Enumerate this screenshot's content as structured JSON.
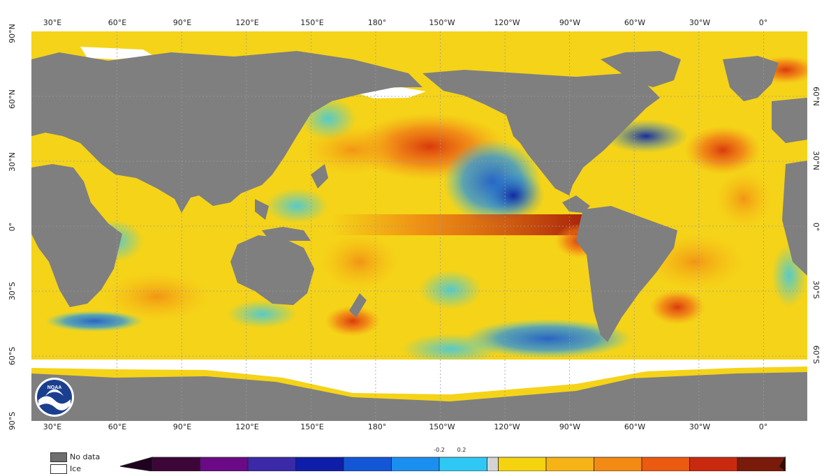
{
  "map": {
    "top_lon_labels": [
      "30°E",
      "60°E",
      "90°E",
      "120°E",
      "150°E",
      "180°",
      "150°W",
      "120°W",
      "90°W",
      "60°W",
      "30°W",
      "0°"
    ],
    "bottom_lon_labels": [
      "30°E",
      "60°E",
      "90°E",
      "120°E",
      "150°E",
      "180°",
      "150°W",
      "120°W",
      "90°W",
      "60°W",
      "30°W",
      "0°"
    ],
    "left_lat_labels": [
      "90°N",
      "60°N",
      "30°N",
      "0°",
      "30°S",
      "60°S",
      "90°S"
    ],
    "right_lat_labels": [
      "60°N",
      "30°N",
      "0°",
      "30°S",
      "60°S"
    ],
    "colors": {
      "land": "#7f7f7f",
      "ocean_base": "#f5d318",
      "ice": "#ffffff",
      "grid": "#9a9a9a"
    },
    "logo": {
      "text": "NOAA",
      "icon": "noaa-logo-icon"
    }
  },
  "legend": {
    "no_data_label": "No data",
    "ice_label": "Ice",
    "no_data_color": "#6e6e6e",
    "ice_color": "#ffffff"
  },
  "colorbar": {
    "tick_labels": [
      "-0.2",
      "0.2"
    ],
    "colors": [
      "#3d0638",
      "#6a0a86",
      "#3a2aa8",
      "#0f1ea8",
      "#1357d6",
      "#1b8ff0",
      "#2fc8f5",
      "#d4d4d4",
      "#f5d30f",
      "#f6b316",
      "#f38a14",
      "#ea5a10",
      "#c92a0f",
      "#7a1a0a"
    ],
    "end_left_color": "#200020",
    "end_right_color": "#3a0800"
  }
}
